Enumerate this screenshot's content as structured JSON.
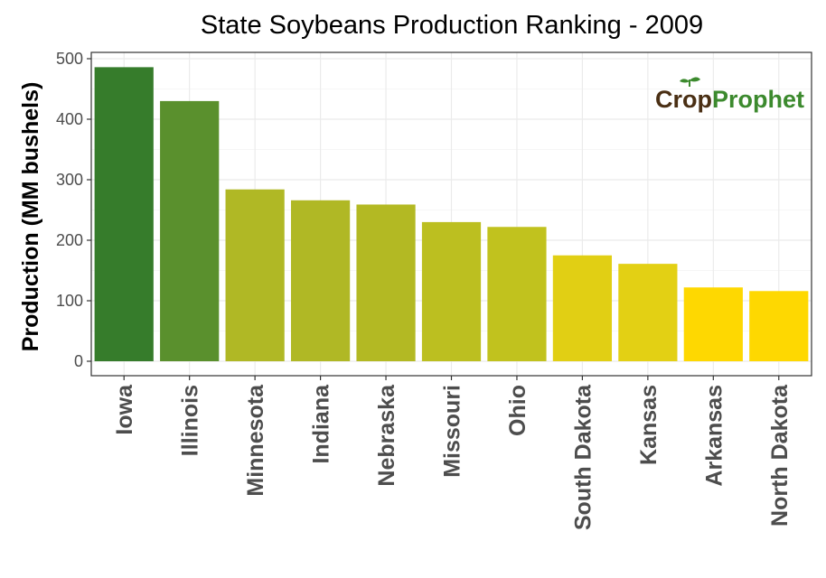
{
  "chart_data": {
    "type": "bar",
    "title": "State Soybeans Production Ranking - 2009",
    "xlabel": "",
    "ylabel": "Production (MM bushels)",
    "ylim": [
      0,
      500
    ],
    "yticks": [
      0,
      100,
      200,
      300,
      400,
      500
    ],
    "grid": true,
    "categories": [
      "Iowa",
      "Illinois",
      "Minnesota",
      "Indiana",
      "Nebraska",
      "Missouri",
      "Ohio",
      "South Dakota",
      "Kansas",
      "Arkansas",
      "North Dakota"
    ],
    "values": [
      486,
      430,
      284,
      266,
      259,
      230,
      222,
      175,
      161,
      122,
      116
    ],
    "colors": [
      "#367c2b",
      "#5a902d",
      "#b0b825",
      "#b0b825",
      "#b3b923",
      "#bcbf20",
      "#c1c21e",
      "#e1cf14",
      "#e3d014",
      "#fed801",
      "#fed801"
    ]
  },
  "watermark": {
    "part1": "Crop",
    "part2": "Prophet"
  }
}
